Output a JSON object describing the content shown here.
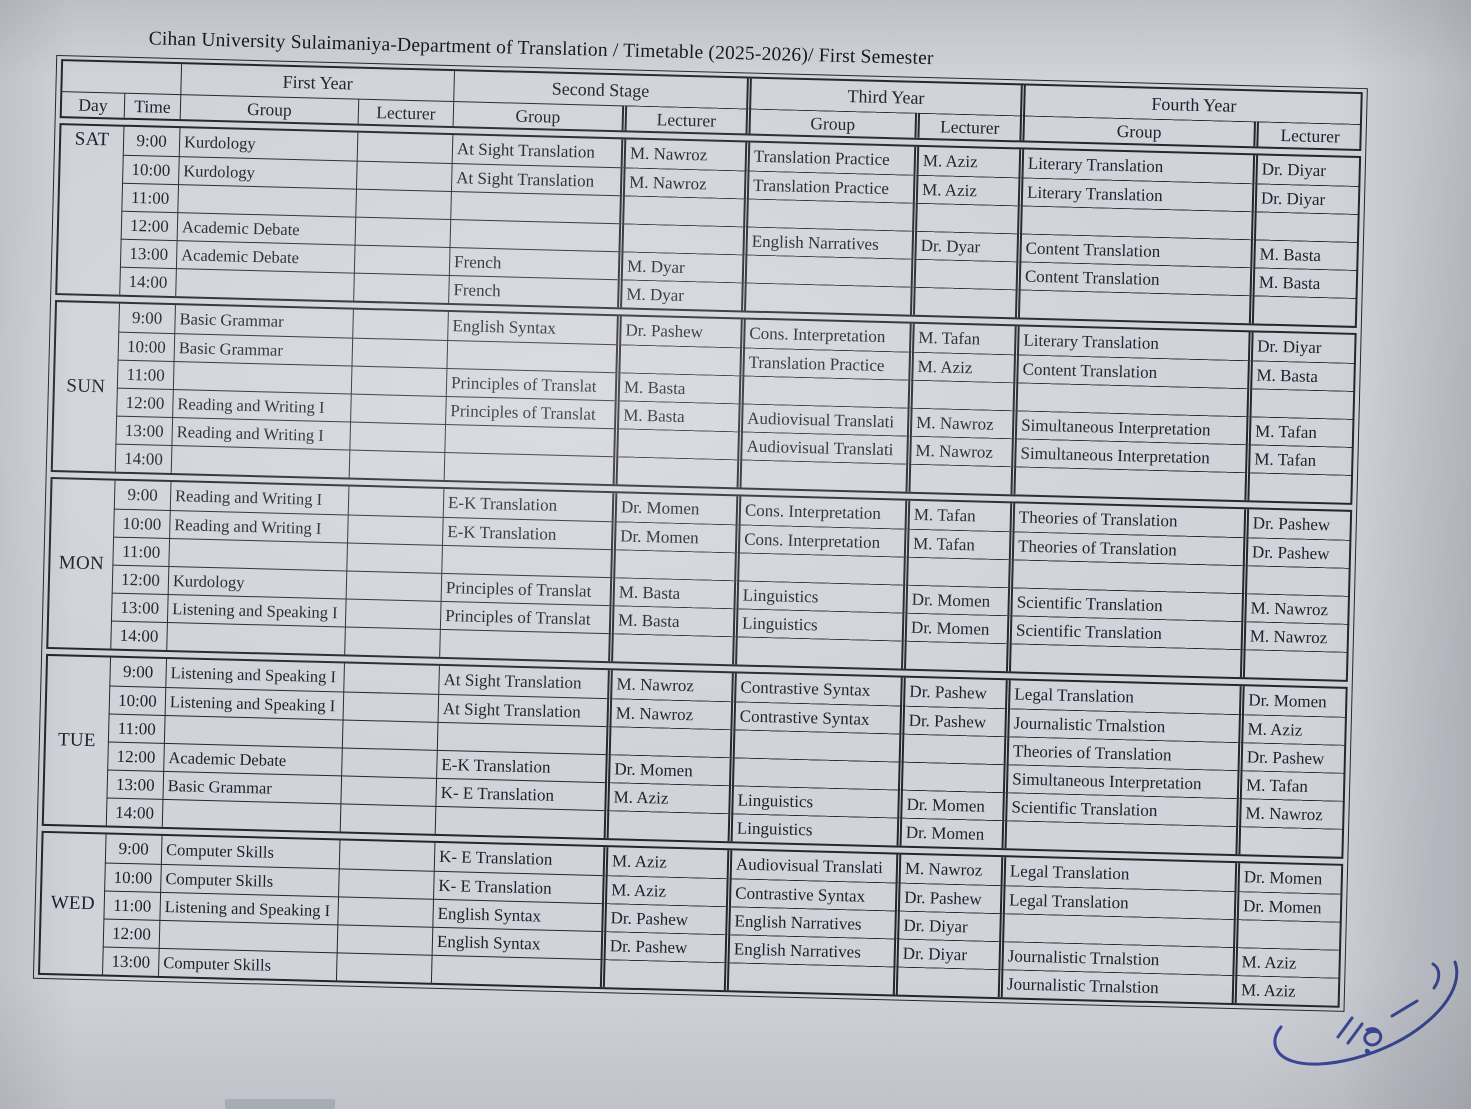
{
  "document": {
    "title": "Cihan University Sulaimaniya-Department of Translation / Timetable (2025-2026)/ First Semester"
  },
  "colors": {
    "paper": "#d0d3d9",
    "line": "#26262b",
    "text": "#20212a",
    "signature_ink": "#2c3c96"
  },
  "table": {
    "headers": {
      "day": "Day",
      "time": "Time",
      "group": "Group",
      "lecturer": "Lecturer",
      "year_groups": [
        "First Year",
        "Second Stage",
        "Third Year",
        "Fourth Year"
      ]
    },
    "days": [
      {
        "day": "SAT",
        "rows": [
          {
            "time": "9:00",
            "cells": [
              "Kurdology",
              "",
              "At Sight Translation",
              "M. Nawroz",
              "Translation Practice",
              "M. Aziz",
              "Literary Translation",
              "Dr. Diyar"
            ]
          },
          {
            "time": "10:00",
            "cells": [
              "Kurdology",
              "",
              "At Sight Translation",
              "M. Nawroz",
              "Translation Practice",
              "M. Aziz",
              "Literary Translation",
              "Dr. Diyar"
            ]
          },
          {
            "time": "11:00",
            "cells": [
              "",
              "",
              "",
              "",
              "",
              "",
              "",
              ""
            ]
          },
          {
            "time": "12:00",
            "cells": [
              "Academic Debate",
              "",
              "",
              "",
              "English Narratives",
              "Dr. Dyar",
              "Content Translation",
              "M. Basta"
            ]
          },
          {
            "time": "13:00",
            "cells": [
              "Academic Debate",
              "",
              "French",
              "M. Dyar",
              "",
              "",
              "Content Translation",
              "M. Basta"
            ]
          },
          {
            "time": "14:00",
            "cells": [
              "",
              "",
              "French",
              "M. Dyar",
              "",
              "",
              "",
              ""
            ]
          }
        ]
      },
      {
        "day": "SUN",
        "rows": [
          {
            "time": "9:00",
            "cells": [
              "Basic Grammar",
              "",
              "English Syntax",
              "Dr. Pashew",
              "Cons. Interpretation",
              "M. Tafan",
              "Literary Translation",
              "Dr. Diyar"
            ]
          },
          {
            "time": "10:00",
            "cells": [
              "Basic Grammar",
              "",
              "",
              "",
              "Translation Practice",
              "M. Aziz",
              "Content Translation",
              "M. Basta"
            ]
          },
          {
            "time": "11:00",
            "cells": [
              "",
              "",
              "Principles of Translat",
              "M. Basta",
              "",
              "",
              "",
              ""
            ]
          },
          {
            "time": "12:00",
            "cells": [
              "Reading and Writing I",
              "",
              "Principles of Translat",
              "M. Basta",
              "Audiovisual Translati",
              "M. Nawroz",
              "Simultaneous Interpretation",
              "M. Tafan"
            ]
          },
          {
            "time": "13:00",
            "cells": [
              "Reading and Writing I",
              "",
              "",
              "",
              "Audiovisual Translati",
              "M. Nawroz",
              "Simultaneous Interpretation",
              "M. Tafan"
            ]
          },
          {
            "time": "14:00",
            "cells": [
              "",
              "",
              "",
              "",
              "",
              "",
              "",
              ""
            ]
          }
        ]
      },
      {
        "day": "MON",
        "rows": [
          {
            "time": "9:00",
            "cells": [
              "Reading and Writing I",
              "",
              "E-K Translation",
              "Dr. Momen",
              "Cons. Interpretation",
              "M. Tafan",
              "Theories of Translation",
              "Dr. Pashew"
            ]
          },
          {
            "time": "10:00",
            "cells": [
              "Reading and Writing I",
              "",
              "E-K Translation",
              "Dr. Momen",
              "Cons. Interpretation",
              "M. Tafan",
              "Theories of Translation",
              "Dr. Pashew"
            ]
          },
          {
            "time": "11:00",
            "cells": [
              "",
              "",
              "",
              "",
              "",
              "",
              "",
              ""
            ]
          },
          {
            "time": "12:00",
            "cells": [
              "Kurdology",
              "",
              "Principles of Translat",
              "M. Basta",
              "Linguistics",
              "Dr. Momen",
              "Scientific Translation",
              "M. Nawroz"
            ]
          },
          {
            "time": "13:00",
            "cells": [
              "Listening and Speaking I",
              "",
              "Principles of Translat",
              "M. Basta",
              "Linguistics",
              "Dr. Momen",
              "Scientific Translation",
              "M. Nawroz"
            ]
          },
          {
            "time": "14:00",
            "cells": [
              "",
              "",
              "",
              "",
              "",
              "",
              "",
              ""
            ]
          }
        ]
      },
      {
        "day": "TUE",
        "rows": [
          {
            "time": "9:00",
            "cells": [
              "Listening and Speaking I",
              "",
              "At Sight Translation",
              "M. Nawroz",
              "Contrastive Syntax",
              "Dr. Pashew",
              "Legal Translation",
              "Dr. Momen"
            ]
          },
          {
            "time": "10:00",
            "cells": [
              "Listening and Speaking I",
              "",
              "At Sight Translation",
              "M. Nawroz",
              "Contrastive Syntax",
              "Dr. Pashew",
              "Journalistic Trnalstion",
              "M. Aziz"
            ]
          },
          {
            "time": "11:00",
            "cells": [
              "",
              "",
              "",
              "",
              "",
              "",
              "Theories of Translation",
              "Dr. Pashew"
            ]
          },
          {
            "time": "12:00",
            "cells": [
              "Academic Debate",
              "",
              "E-K Translation",
              "Dr. Momen",
              "",
              "",
              "Simultaneous Interpretation",
              "M. Tafan"
            ]
          },
          {
            "time": "13:00",
            "cells": [
              "Basic Grammar",
              "",
              "K- E Translation",
              "M. Aziz",
              "Linguistics",
              "Dr. Momen",
              "Scientific Translation",
              "M. Nawroz"
            ]
          },
          {
            "time": "14:00",
            "cells": [
              "",
              "",
              "",
              "",
              "Linguistics",
              "Dr. Momen",
              "",
              ""
            ]
          }
        ]
      },
      {
        "day": "WED",
        "rows": [
          {
            "time": "9:00",
            "cells": [
              "Computer Skills",
              "",
              "K- E Translation",
              "M. Aziz",
              "Audiovisual Translati",
              "M. Nawroz",
              "Legal Translation",
              "Dr. Momen"
            ]
          },
          {
            "time": "10:00",
            "cells": [
              "Computer Skills",
              "",
              "K- E Translation",
              "M. Aziz",
              "Contrastive Syntax",
              "Dr. Pashew",
              "Legal Translation",
              "Dr. Momen"
            ]
          },
          {
            "time": "11:00",
            "cells": [
              "Listening and Speaking I",
              "",
              "English Syntax",
              "Dr. Pashew",
              "English Narratives",
              "Dr. Diyar",
              "",
              ""
            ]
          },
          {
            "time": "12:00",
            "cells": [
              "",
              "",
              "English Syntax",
              "Dr. Pashew",
              "English Narratives",
              "Dr. Diyar",
              "Journalistic Trnalstion",
              "M. Aziz"
            ]
          },
          {
            "time": "13:00",
            "cells": [
              "Computer Skills",
              "",
              "",
              "",
              "",
              "",
              "Journalistic Trnalstion",
              "M. Aziz"
            ]
          }
        ]
      }
    ]
  }
}
